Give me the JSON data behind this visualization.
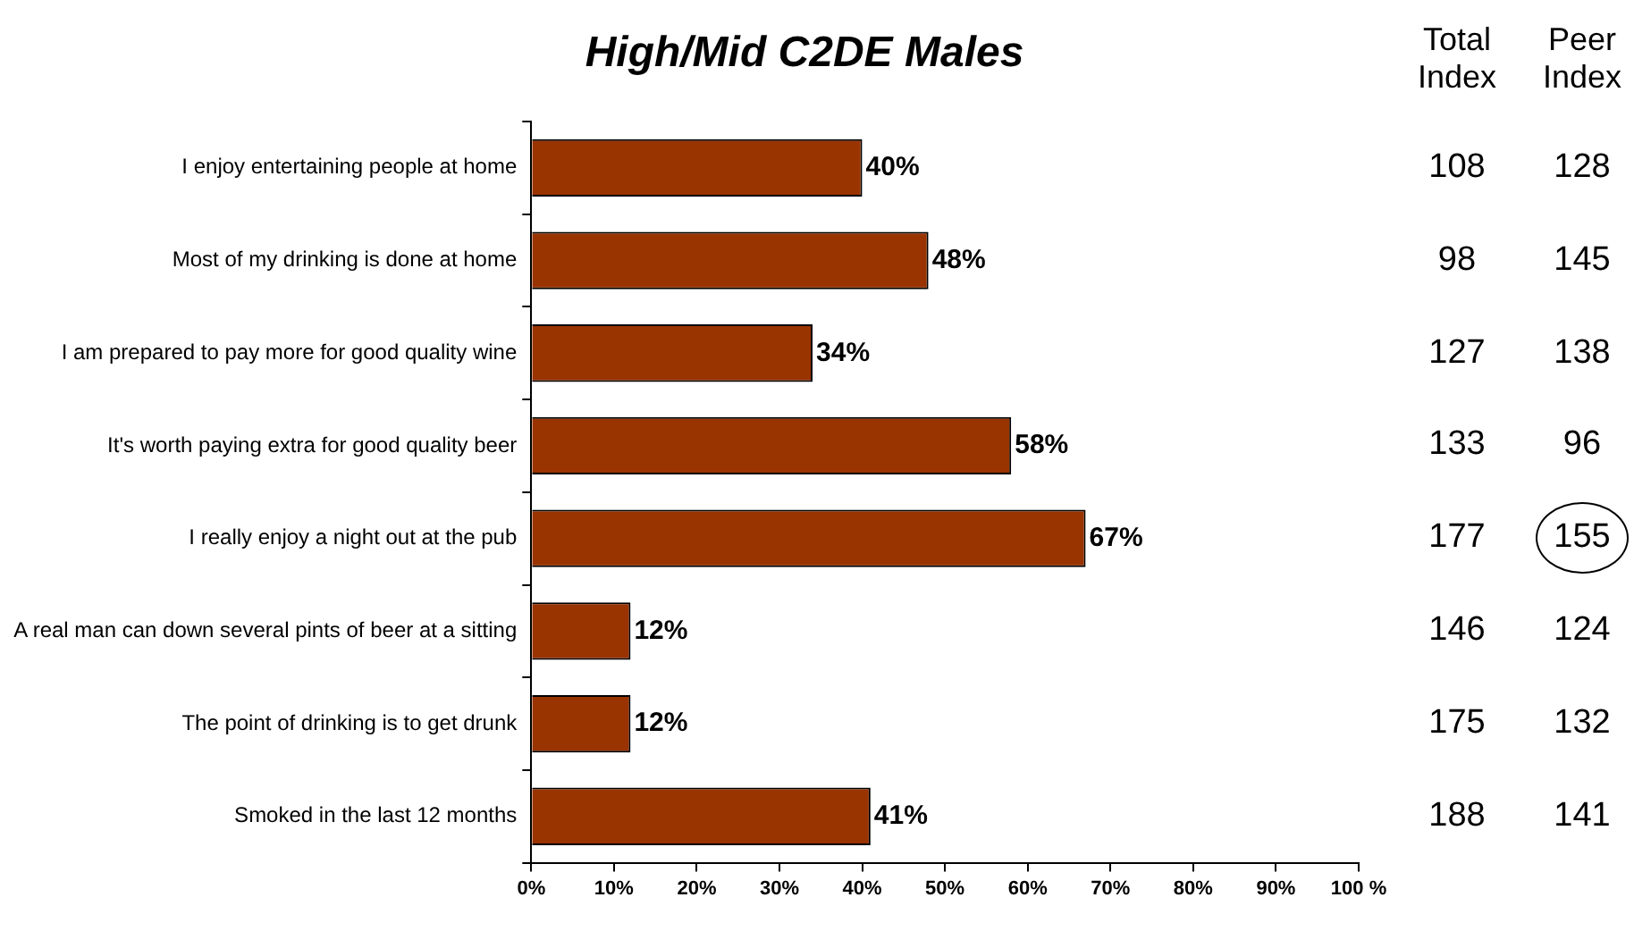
{
  "chart_data": {
    "type": "bar",
    "orientation": "horizontal",
    "title": "High/Mid C2DE Males",
    "categories": [
      "I enjoy entertaining people at home",
      "Most of my drinking is done at home",
      "I am prepared to pay more for good quality wine",
      "It's worth paying extra for good quality beer",
      "I really enjoy a night out at the pub",
      "A real man can down several pints of beer at a sitting",
      "The point of drinking is to get drunk",
      "Smoked in the last 12 months"
    ],
    "values": [
      40,
      48,
      34,
      58,
      67,
      12,
      12,
      41
    ],
    "value_labels": [
      "40%",
      "48%",
      "34%",
      "58%",
      "67%",
      "12%",
      "12%",
      "41%"
    ],
    "color": "#993300",
    "xlim": [
      0,
      100
    ],
    "xticks": [
      {
        "value": 0,
        "label": "0%"
      },
      {
        "value": 10,
        "label": "10%"
      },
      {
        "value": 20,
        "label": "20%"
      },
      {
        "value": 30,
        "label": "30%"
      },
      {
        "value": 40,
        "label": "40%"
      },
      {
        "value": 50,
        "label": "50%"
      },
      {
        "value": 60,
        "label": "60%"
      },
      {
        "value": 70,
        "label": "70%"
      },
      {
        "value": 80,
        "label": "80%"
      },
      {
        "value": 90,
        "label": "90%"
      },
      {
        "value": 100,
        "label": "100 %"
      }
    ],
    "grid": false,
    "legend": false,
    "annotations": [
      "Total Index",
      "Peer Index",
      "108",
      "128",
      "98",
      "145",
      "127",
      "138",
      "133",
      "96",
      "177",
      "155",
      "146",
      "124",
      "175",
      "132",
      "188",
      "141"
    ]
  }
}
